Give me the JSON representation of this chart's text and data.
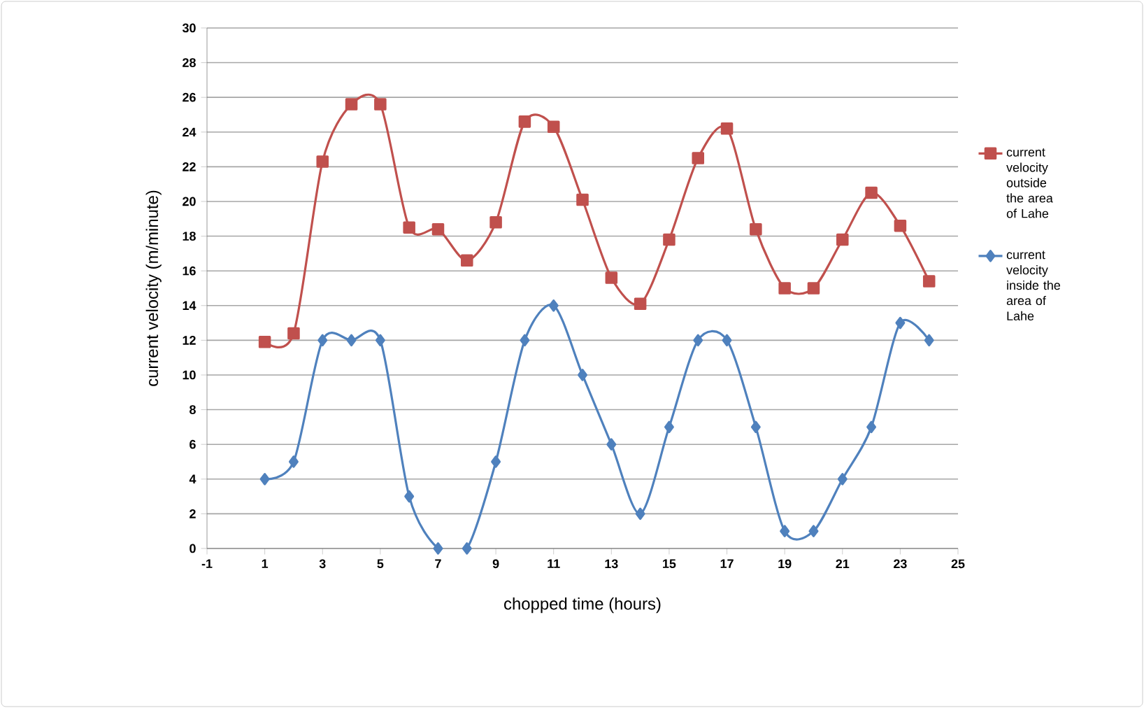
{
  "chart_data": {
    "type": "line",
    "xlabel": "chopped time (hours)",
    "ylabel": "current velocity (m/minute)",
    "x": [
      1,
      2,
      3,
      4,
      5,
      6,
      7,
      8,
      9,
      10,
      11,
      12,
      13,
      14,
      15,
      16,
      17,
      18,
      19,
      20,
      21,
      22,
      23,
      24
    ],
    "series": [
      {
        "name": "current velocity outside the area of Lahe",
        "color": "#c0504d",
        "marker": "square",
        "values": [
          11.9,
          12.4,
          22.3,
          25.6,
          25.6,
          18.5,
          18.4,
          16.6,
          18.8,
          24.6,
          24.3,
          20.1,
          15.6,
          14.1,
          17.8,
          22.5,
          24.2,
          18.4,
          15,
          15,
          17.8,
          20.5,
          18.6,
          15.4
        ]
      },
      {
        "name": "current velocity inside the area of Lahe",
        "color": "#4f81bd",
        "marker": "diamond",
        "values": [
          4,
          5,
          12,
          12,
          12,
          3,
          0,
          0,
          5,
          12,
          14,
          10,
          6,
          2,
          7,
          12,
          12,
          7,
          1,
          1,
          4,
          7,
          13,
          12
        ]
      }
    ],
    "xlim": [
      -1,
      25
    ],
    "ylim": [
      0,
      30
    ],
    "xticks": [
      -1,
      1,
      3,
      5,
      7,
      9,
      11,
      13,
      15,
      17,
      19,
      21,
      23,
      25
    ],
    "yticks": [
      0,
      2,
      4,
      6,
      8,
      10,
      12,
      14,
      16,
      18,
      20,
      22,
      24,
      26,
      28,
      30
    ],
    "grid": "y",
    "legend": "right"
  }
}
